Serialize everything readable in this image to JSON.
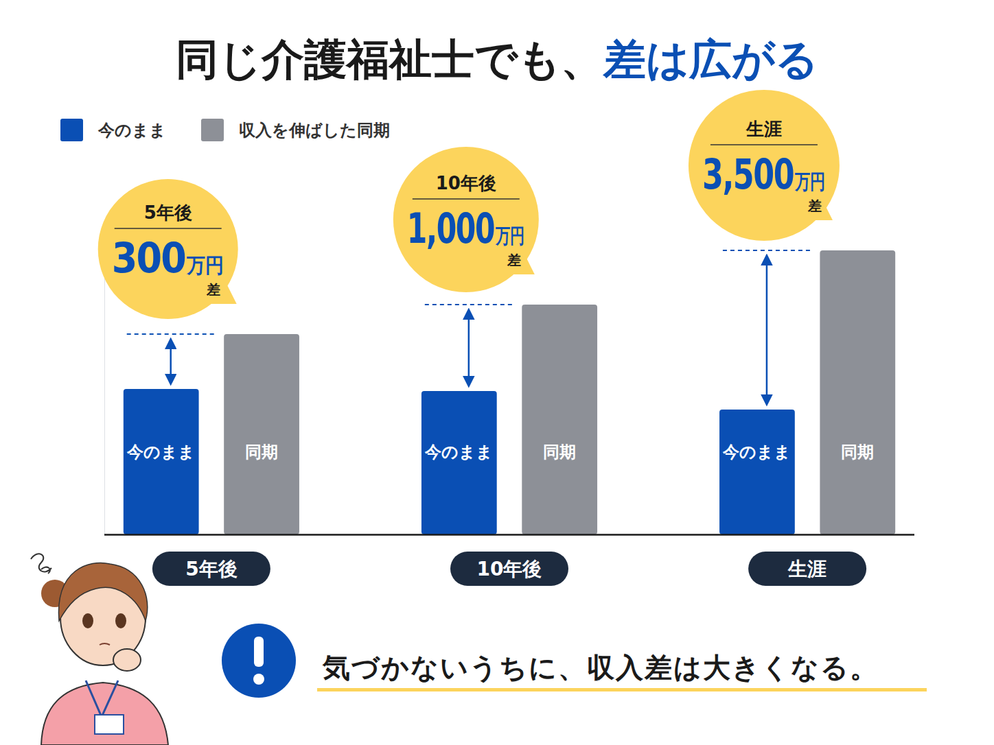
{
  "chart_data": {
    "type": "bar",
    "title": [
      "同じ介護福祉士でも、",
      "差は広がる"
    ],
    "categories": [
      "5年後",
      "10年後",
      "生涯"
    ],
    "series": [
      {
        "name": "今のまま",
        "color": "#0a4fb4",
        "bar_label": "今のまま",
        "values": [
          212,
          209,
          182
        ]
      },
      {
        "name": "収入を伸ばした同期",
        "color": "#8d9097",
        "bar_label": "同期",
        "values": [
          292,
          335,
          414
        ]
      }
    ],
    "ylim": [
      0,
      450
    ],
    "tick_labels": "x",
    "grid": false,
    "legend": "top-left",
    "annotations": [
      {
        "period": "5年後",
        "value": 300,
        "label": "300",
        "unit": "万円",
        "suffix": "差"
      },
      {
        "period": "10年後",
        "value": 1000,
        "label": "1,000",
        "unit": "万円",
        "suffix": "差"
      },
      {
        "period": "生涯",
        "value": 3500,
        "label": "3,500",
        "unit": "万円",
        "suffix": "差"
      }
    ],
    "caption": "気づかないうちに、収入差は大きくなる。"
  }
}
